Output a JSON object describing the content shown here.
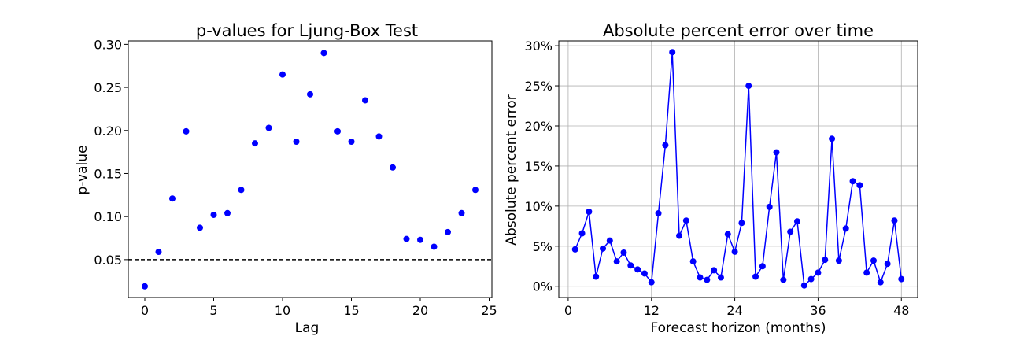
{
  "chart_data": [
    {
      "type": "scatter",
      "title": "p-values for Ljung-Box Test",
      "xlabel": "Lag",
      "ylabel": "p-value",
      "x": [
        0,
        1,
        2,
        3,
        4,
        5,
        6,
        7,
        8,
        9,
        10,
        11,
        12,
        13,
        14,
        15,
        16,
        17,
        18,
        19,
        20,
        21,
        22,
        23,
        24
      ],
      "values": [
        0.019,
        0.059,
        0.121,
        0.199,
        0.087,
        0.102,
        0.104,
        0.131,
        0.185,
        0.203,
        0.265,
        0.187,
        0.242,
        0.29,
        0.199,
        0.187,
        0.235,
        0.193,
        0.157,
        0.074,
        0.073,
        0.065,
        0.082,
        0.104,
        0.131
      ],
      "xlim": [
        -1.2,
        25.2
      ],
      "ylim": [
        0.006,
        0.304
      ],
      "xticks": [
        0,
        5,
        10,
        15,
        20,
        25
      ],
      "xtick_labels": [
        "0",
        "5",
        "10",
        "15",
        "20",
        "25"
      ],
      "yticks": [
        0.05,
        0.1,
        0.15,
        0.2,
        0.25,
        0.3
      ],
      "ytick_labels": [
        "0.05",
        "0.10",
        "0.15",
        "0.20",
        "0.25",
        "0.30"
      ],
      "reference_line": {
        "y": 0.05,
        "style": "dashed",
        "color": "#000000"
      },
      "marker_color": "#0000ff",
      "grid": false
    },
    {
      "type": "line",
      "title": "Absolute percent error over time",
      "xlabel": "Forecast horizon (months)",
      "ylabel": "Absolute percent error",
      "x": [
        1,
        2,
        3,
        4,
        5,
        6,
        7,
        8,
        9,
        10,
        11,
        12,
        13,
        14,
        15,
        16,
        17,
        18,
        19,
        20,
        21,
        22,
        23,
        24,
        25,
        26,
        27,
        28,
        29,
        30,
        31,
        32,
        33,
        34,
        35,
        36,
        37,
        38,
        39,
        40,
        41,
        42,
        43,
        44,
        45,
        46,
        47,
        48
      ],
      "values": [
        4.6,
        6.6,
        9.3,
        1.2,
        4.7,
        5.7,
        3.1,
        4.2,
        2.6,
        2.1,
        1.6,
        0.5,
        9.1,
        17.6,
        29.2,
        6.3,
        8.2,
        3.1,
        1.1,
        0.8,
        2.0,
        1.1,
        6.5,
        4.3,
        7.9,
        25.0,
        1.2,
        2.5,
        9.9,
        16.7,
        0.8,
        6.8,
        8.1,
        0.1,
        0.9,
        1.7,
        3.3,
        18.4,
        3.2,
        7.2,
        13.1,
        12.6,
        1.7,
        3.2,
        0.5,
        2.8,
        8.2,
        0.9
      ],
      "xlim": [
        -1.35,
        50.35
      ],
      "ylim": [
        -1.4,
        30.6
      ],
      "xticks": [
        0,
        12,
        24,
        36,
        48
      ],
      "xtick_labels": [
        "0",
        "12",
        "24",
        "36",
        "48"
      ],
      "yticks": [
        0,
        5,
        10,
        15,
        20,
        25,
        30
      ],
      "ytick_labels": [
        "0%",
        "5%",
        "10%",
        "15%",
        "20%",
        "25%",
        "30%"
      ],
      "line_color": "#0000ff",
      "grid": true
    }
  ]
}
